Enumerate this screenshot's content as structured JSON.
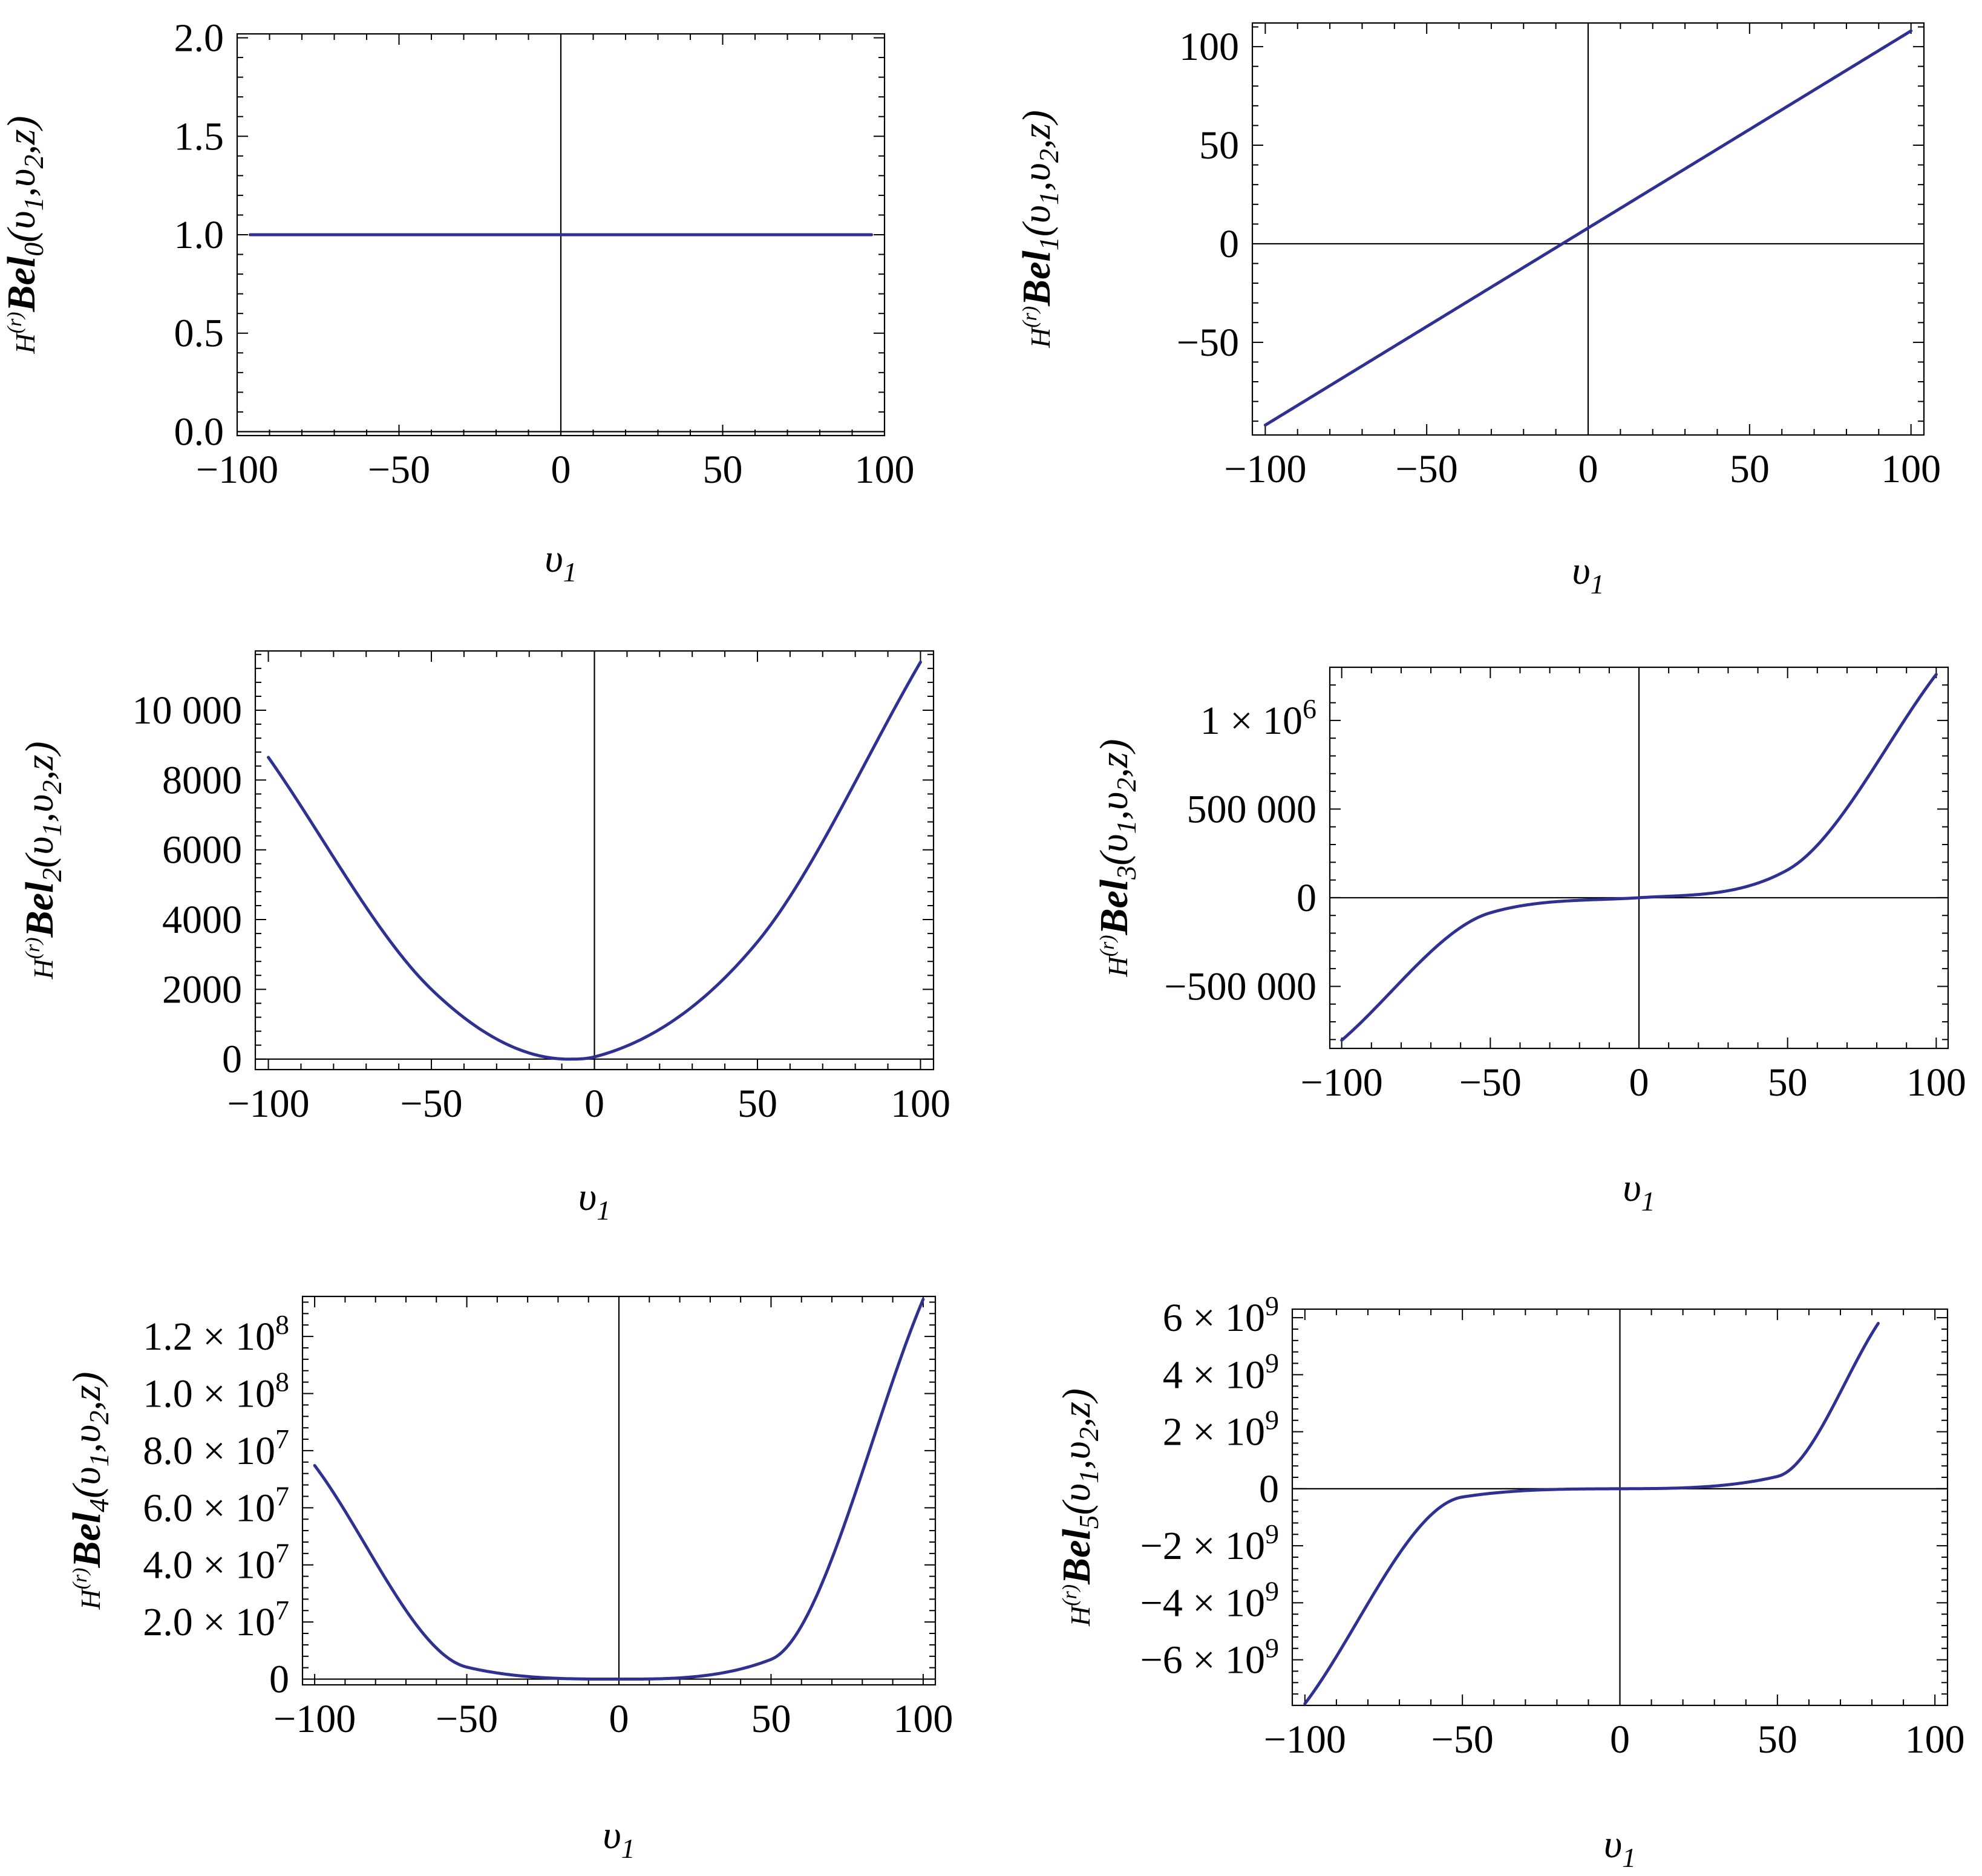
{
  "style": {
    "line_color": "#2E3192"
  },
  "chart_data": [
    {
      "type": "line",
      "order": 0,
      "xlabel": "υ",
      "xlabel_sub": "1",
      "ylabel": {
        "prefix": "H",
        "sup": "(r)",
        "main": "Bel",
        "sub": "0",
        "args": "(υ",
        "a1": "1",
        "mid": ",υ",
        "a2": "2",
        "end": ",z)"
      },
      "xlim": [
        -100,
        100
      ],
      "ylim": [
        -0.02,
        2.02
      ],
      "xticks": [
        -100,
        -50,
        0,
        50,
        100
      ],
      "xtick_labels": [
        "−100",
        "−50",
        "0",
        "50",
        "100"
      ],
      "yticks": [
        0,
        0.5,
        1,
        1.5,
        2
      ],
      "ytick_labels": [
        "0.0",
        "0.5",
        "1.0",
        "1.5",
        "2.0"
      ],
      "grid": false,
      "series": [
        {
          "x_range": [
            -96,
            96
          ],
          "values": [
            [
              -96,
              1
            ],
            [
              0,
              1
            ],
            [
              96,
              1
            ]
          ]
        }
      ]
    },
    {
      "type": "line",
      "order": 1,
      "xlabel": "υ",
      "xlabel_sub": "1",
      "ylabel": {
        "prefix": "H",
        "sup": "(r)",
        "main": "Bel",
        "sub": "1",
        "args": "(υ",
        "a1": "1",
        "mid": ",υ",
        "a2": "2",
        "end": ",z)"
      },
      "xlim": [
        -104,
        104
      ],
      "ylim": [
        -97,
        112
      ],
      "xticks": [
        -100,
        -50,
        0,
        50,
        100
      ],
      "xtick_labels": [
        "−100",
        "−50",
        "0",
        "50",
        "100"
      ],
      "yticks": [
        -50,
        0,
        50,
        100
      ],
      "ytick_labels": [
        "−50",
        "0",
        "50",
        "100"
      ],
      "grid": false,
      "series": [
        {
          "x_range": [
            -100,
            100
          ],
          "values": [
            [
              -100,
              -92
            ],
            [
              0,
              8
            ],
            [
              100,
              108
            ]
          ]
        }
      ]
    },
    {
      "type": "line",
      "order": 2,
      "xlabel": "υ",
      "xlabel_sub": "1",
      "ylabel": {
        "prefix": "H",
        "sup": "(r)",
        "main": "Bel",
        "sub": "2",
        "args": "(υ",
        "a1": "1",
        "mid": ",υ",
        "a2": "2",
        "end": ",z)"
      },
      "xlim": [
        -104,
        104
      ],
      "ylim": [
        -300,
        11700
      ],
      "xticks": [
        -100,
        -50,
        0,
        50,
        100
      ],
      "xtick_labels": [
        "−100",
        "−50",
        "0",
        "50",
        "100"
      ],
      "yticks": [
        0,
        2000,
        4000,
        6000,
        8000,
        10000
      ],
      "ytick_labels": [
        "0",
        "2000",
        "4000",
        "6000",
        "8000",
        "10 000"
      ],
      "grid": false,
      "series": [
        {
          "x_range": [
            -100,
            100
          ],
          "values": [
            [
              -100,
              8650
            ],
            [
              -50,
              2000
            ],
            [
              -8,
              0
            ],
            [
              0,
              64
            ],
            [
              50,
              3360
            ],
            [
              100,
              11380
            ]
          ]
        }
      ]
    },
    {
      "type": "line",
      "order": 3,
      "xlabel": "υ",
      "xlabel_sub": "1",
      "ylabel": {
        "prefix": "H",
        "sup": "(r)",
        "main": "Bel",
        "sub": "3",
        "args": "(υ",
        "a1": "1",
        "mid": ",υ",
        "a2": "2",
        "end": ",z)"
      },
      "xlim": [
        -104,
        104
      ],
      "ylim": [
        -850000,
        1300000
      ],
      "xticks": [
        -100,
        -50,
        0,
        50,
        100
      ],
      "xtick_labels": [
        "−100",
        "−50",
        "0",
        "50",
        "100"
      ],
      "yticks": [
        -500000,
        0,
        500000,
        1000000
      ],
      "ytick_labels": [
        "−500 000",
        "0",
        "500 000",
        "1 × 10^6"
      ],
      "grid": false,
      "series": [
        {
          "x_range": [
            -100,
            100
          ],
          "values": [
            [
              -100,
              -804000
            ],
            [
              -50,
              -85000
            ],
            [
              0,
              0
            ],
            [
              50,
              157000
            ],
            [
              100,
              1260000
            ]
          ]
        }
      ]
    },
    {
      "type": "line",
      "order": 4,
      "xlabel": "υ",
      "xlabel_sub": "1",
      "ylabel": {
        "prefix": "H",
        "sup": "(r)",
        "main": "Bel",
        "sub": "4",
        "args": "(υ",
        "a1": "1",
        "mid": ",υ",
        "a2": "2",
        "end": ",z)"
      },
      "xlim": [
        -104,
        104
      ],
      "ylim": [
        -2000000,
        134000000
      ],
      "xticks": [
        -100,
        -50,
        0,
        50,
        100
      ],
      "xtick_labels": [
        "−100",
        "−50",
        "0",
        "50",
        "100"
      ],
      "yticks": [
        0,
        20000000,
        40000000,
        60000000,
        80000000,
        100000000,
        120000000
      ],
      "ytick_labels": [
        "0",
        "2.0 × 10^7",
        "4.0 × 10^7",
        "6.0 × 10^7",
        "8.0 × 10^7",
        "1.0 × 10^8",
        "1.2 × 10^8"
      ],
      "grid": false,
      "series": [
        {
          "x_range": [
            -100,
            100
          ],
          "values": [
            [
              -100,
              74800000
            ],
            [
              -50,
              4200000
            ],
            [
              0,
              0
            ],
            [
              50,
              6900000
            ],
            [
              100,
              133000000
            ]
          ]
        }
      ]
    },
    {
      "type": "line",
      "order": 5,
      "xlabel": "υ",
      "xlabel_sub": "1",
      "ylabel": {
        "prefix": "H",
        "sup": "(r)",
        "main": "Bel",
        "sub": "5",
        "args": "(υ",
        "a1": "1",
        "mid": ",υ",
        "a2": "2",
        "end": ",z)"
      },
      "xlim": [
        -104,
        104
      ],
      "ylim": [
        -7600000000,
        6300000000
      ],
      "xticks": [
        -100,
        -50,
        0,
        50,
        100
      ],
      "xtick_labels": [
        "−100",
        "−50",
        "0",
        "50",
        "100"
      ],
      "yticks": [
        -6000000000,
        -4000000000,
        -2000000000,
        0,
        2000000000,
        4000000000,
        6000000000
      ],
      "ytick_labels": [
        "−6 × 10^9",
        "−4 × 10^9",
        "−2 × 10^9",
        "0",
        "2 × 10^9",
        "4 × 10^9",
        "6 × 10^9"
      ],
      "grid": false,
      "series": [
        {
          "x_range": [
            -100,
            82
          ],
          "values": [
            [
              -100,
              -7540000000
            ],
            [
              -50,
              -290000000
            ],
            [
              0,
              0
            ],
            [
              50,
              430000000
            ],
            [
              82,
              5800000000
            ]
          ]
        }
      ]
    }
  ]
}
